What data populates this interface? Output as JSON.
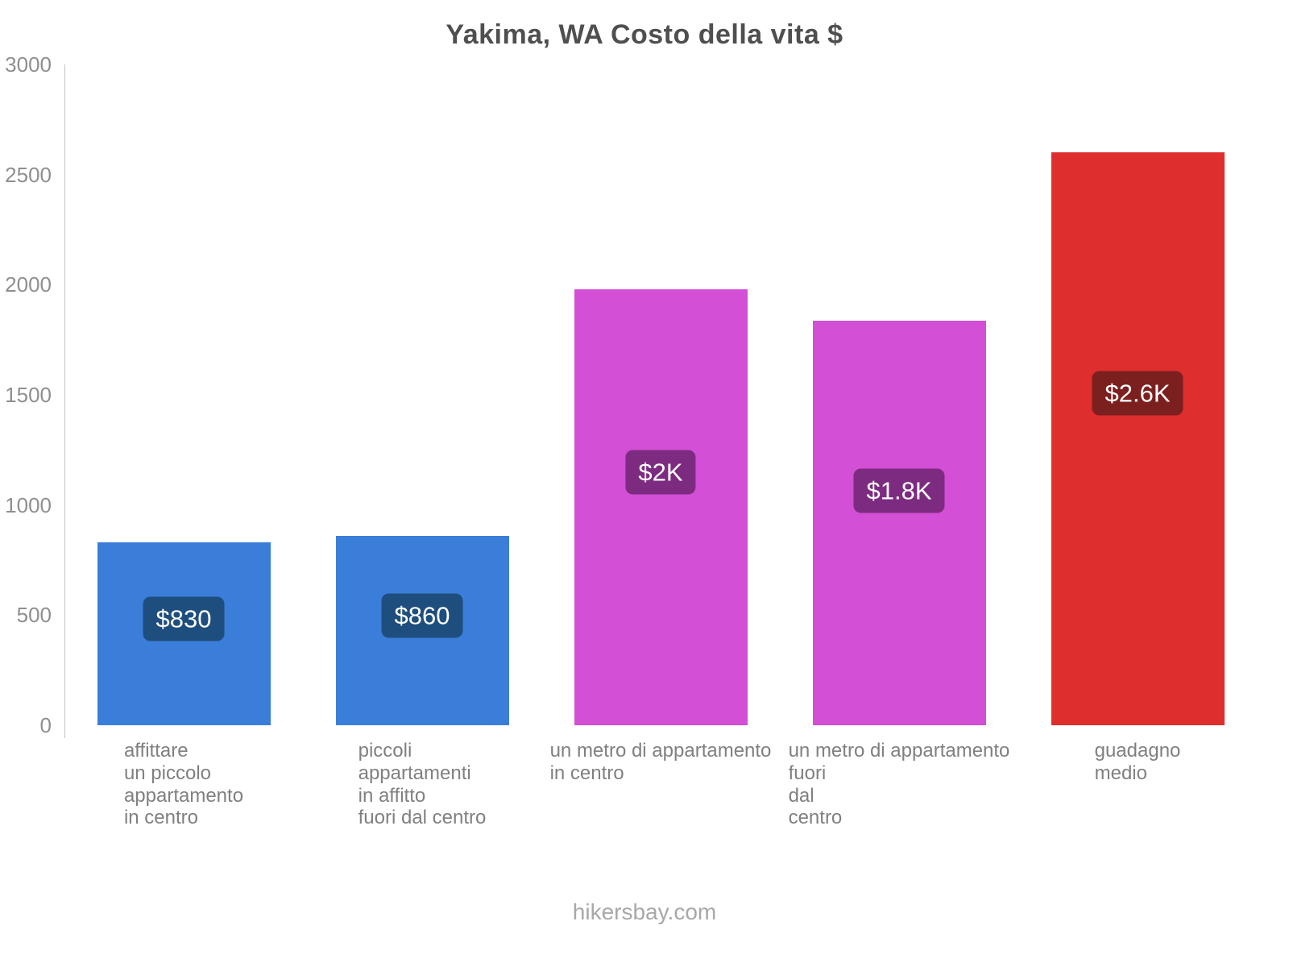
{
  "chart_data": {
    "type": "bar",
    "title": "Yakima, WA Costo della vita $",
    "categories": [
      "affittare\nun piccolo\nappartamento\nin centro",
      "piccoli\nappartamenti\nin affitto\nfuori dal centro",
      "un metro di appartamento\nin centro",
      "un metro di appartamento\nfuori\ndal\ncentro",
      "guadagno\nmedio"
    ],
    "values": [
      830,
      860,
      1980,
      1835,
      2600
    ],
    "value_labels": [
      "$830",
      "$860",
      "$2K",
      "$1.8K",
      "$2.6K"
    ],
    "bar_colors": [
      "#3b7ed9",
      "#3b7ed9",
      "#d24fd6",
      "#d24fd6",
      "#de2e2e"
    ],
    "badge_colors": [
      "#1e4e7d",
      "#1e4e7d",
      "#7d2b80",
      "#7d2b80",
      "#7c1f1f"
    ],
    "xlabel": "",
    "ylabel": "",
    "ylim": [
      0,
      3000
    ],
    "yticks": [
      0,
      500,
      1000,
      1500,
      2000,
      2500,
      3000
    ],
    "grid": false,
    "legend": false
  },
  "footer": {
    "text": "hikersbay.com"
  }
}
